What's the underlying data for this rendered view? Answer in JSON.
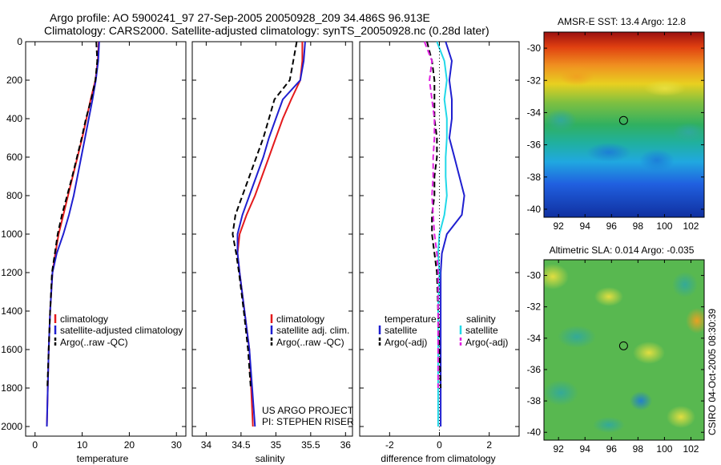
{
  "header": {
    "line1": "Argo profile: AO 5900241_97 27-Sep-2005 20050928_209 34.486S 96.913E",
    "line2": "Climatology: CARS2000. Satellite-adjusted climatology: synTS_20050928.nc (0.28d later)"
  },
  "colors": {
    "climatology": "#e41a1c",
    "satellite": "#1f1fd0",
    "argo": "#000000",
    "sal_satellite": "#22d8e8",
    "sal_argo": "#e020e0"
  },
  "credits": {
    "line1": "US ARGO PROJECT",
    "line2": "PI: STEPHEN RISER"
  },
  "watermark": "CSIRO 04-Oct-2005 08:30:39",
  "chart_data": [
    {
      "type": "line",
      "id": "temperature",
      "xlabel": "temperature",
      "xlim": [
        -2,
        32
      ],
      "xticks": [
        0,
        10,
        20,
        30
      ],
      "ylim": [
        2050,
        0
      ],
      "yticks": [
        0,
        200,
        400,
        600,
        800,
        1000,
        1200,
        1400,
        1600,
        1800,
        2000
      ],
      "legend": [
        "climatology",
        "satellite-adjusted climatology",
        "Argo(..raw -QC)"
      ],
      "series": [
        {
          "name": "climatology",
          "style": "solid",
          "color": "climatology",
          "x": [
            13.5,
            13.3,
            12.8,
            11.8,
            10.9,
            10.0,
            9.0,
            8.0,
            7.0,
            6.0,
            5.0,
            4.3,
            3.7,
            3.2,
            2.9,
            2.5
          ],
          "y": [
            0,
            100,
            200,
            300,
            400,
            500,
            600,
            700,
            800,
            900,
            1000,
            1100,
            1200,
            1400,
            1600,
            2000
          ]
        },
        {
          "name": "satellite-adjusted climatology",
          "style": "solid",
          "color": "satellite",
          "x": [
            13.6,
            13.4,
            12.9,
            12.2,
            11.4,
            10.6,
            9.8,
            9.0,
            8.2,
            7.2,
            6.0,
            4.6,
            3.7,
            3.2,
            2.9,
            2.5
          ],
          "y": [
            0,
            100,
            200,
            300,
            400,
            500,
            600,
            700,
            800,
            900,
            1000,
            1100,
            1200,
            1400,
            1600,
            2000
          ]
        },
        {
          "name": "Argo(..raw -QC)",
          "style": "dash",
          "color": "argo",
          "x": [
            13.0,
            13.2,
            12.8,
            11.9,
            10.8,
            9.9,
            8.9,
            7.9,
            6.8,
            5.7,
            4.8,
            4.2,
            3.6,
            3.2,
            2.9,
            2.6
          ],
          "y": [
            0,
            100,
            200,
            300,
            400,
            500,
            600,
            700,
            800,
            900,
            1000,
            1100,
            1200,
            1400,
            1600,
            1800
          ]
        }
      ]
    },
    {
      "type": "line",
      "id": "salinity",
      "xlabel": "salinity",
      "xlim": [
        33.8,
        36.1
      ],
      "xticks": [
        34,
        34.5,
        35,
        35.5,
        36
      ],
      "ylim": [
        2050,
        0
      ],
      "legend": [
        "climatology",
        "satellite adj. clim.",
        "Argo(..raw -QC)"
      ],
      "series": [
        {
          "name": "climatology",
          "style": "solid",
          "color": "climatology",
          "x": [
            35.38,
            35.38,
            35.35,
            35.22,
            35.1,
            35.0,
            34.9,
            34.8,
            34.7,
            34.58,
            34.48,
            34.45,
            34.48,
            34.55,
            34.62,
            34.67
          ],
          "y": [
            0,
            100,
            200,
            300,
            400,
            500,
            600,
            700,
            800,
            900,
            1000,
            1100,
            1200,
            1400,
            1600,
            2000
          ]
        },
        {
          "name": "satellite adj. clim.",
          "style": "solid",
          "color": "satellite",
          "x": [
            35.42,
            35.4,
            35.35,
            35.1,
            35.0,
            34.9,
            34.82,
            34.72,
            34.62,
            34.52,
            34.45,
            34.45,
            34.48,
            34.55,
            34.62,
            34.7
          ],
          "y": [
            0,
            100,
            200,
            300,
            400,
            500,
            600,
            700,
            800,
            900,
            1000,
            1100,
            1200,
            1400,
            1600,
            2000
          ]
        },
        {
          "name": "Argo(..raw -QC)",
          "style": "dash",
          "color": "argo",
          "x": [
            35.3,
            35.25,
            35.2,
            34.98,
            34.9,
            34.82,
            34.72,
            34.62,
            34.52,
            34.42,
            34.38,
            34.43,
            34.47,
            34.54,
            34.6,
            34.64
          ],
          "y": [
            0,
            100,
            200,
            300,
            400,
            500,
            600,
            700,
            800,
            900,
            1000,
            1100,
            1200,
            1400,
            1600,
            1800
          ]
        }
      ]
    },
    {
      "type": "line",
      "id": "difference",
      "xlabel": "difference from climatology",
      "xlim": [
        -3.2,
        3.2
      ],
      "xticks": [
        -2,
        0,
        2
      ],
      "ylim": [
        2050,
        0
      ],
      "legend_left": {
        "title": "temperature",
        "items": [
          "satellite",
          "Argo(-adj)"
        ]
      },
      "legend_right": {
        "title": "salinity",
        "items": [
          "satellite",
          "Argo(-adj)"
        ]
      },
      "series": [
        {
          "name": "temperature satellite",
          "style": "solid",
          "color": "satellite",
          "x": [
            0.25,
            0.5,
            0.4,
            0.5,
            0.5,
            0.4,
            0.6,
            0.8,
            1.0,
            0.9,
            0.3,
            0.1,
            0.05,
            0.05,
            0.05,
            0.05
          ],
          "y": [
            0,
            100,
            200,
            300,
            400,
            500,
            600,
            700,
            800,
            900,
            1000,
            1100,
            1200,
            1400,
            1600,
            2000
          ]
        },
        {
          "name": "salinity satellite",
          "style": "solid",
          "color": "sal_satellite",
          "x": [
            -0.1,
            0.2,
            0.3,
            0.2,
            0.3,
            0.3,
            0.25,
            0.25,
            0.3,
            0.2,
            0.0,
            -0.05,
            0.0,
            -0.05,
            -0.05,
            -0.05
          ],
          "y": [
            0,
            100,
            200,
            300,
            400,
            500,
            600,
            700,
            800,
            900,
            1000,
            1100,
            1200,
            1400,
            1600,
            2000
          ]
        },
        {
          "name": "temperature Argo(-adj)",
          "style": "dash",
          "color": "argo",
          "x": [
            -0.5,
            -0.3,
            -0.2,
            -0.2,
            -0.2,
            -0.1,
            -0.1,
            -0.2,
            -0.2,
            -0.3,
            -0.3,
            -0.2,
            -0.1,
            -0.05,
            0.0,
            0.05
          ],
          "y": [
            0,
            100,
            200,
            300,
            400,
            500,
            600,
            700,
            800,
            900,
            1000,
            1100,
            1200,
            1400,
            1600,
            1800
          ]
        },
        {
          "name": "salinity Argo(-adj)",
          "style": "dash",
          "color": "sal_argo",
          "x": [
            -0.6,
            -0.3,
            -0.4,
            -0.3,
            -0.2,
            -0.2,
            -0.25,
            -0.25,
            -0.3,
            -0.25,
            -0.2,
            -0.1,
            -0.05,
            -0.05,
            -0.05,
            -0.05
          ],
          "y": [
            0,
            100,
            200,
            300,
            400,
            500,
            600,
            700,
            800,
            900,
            1000,
            1100,
            1200,
            1400,
            1600,
            1800
          ]
        }
      ]
    },
    {
      "type": "heatmap",
      "id": "sst",
      "title": "AMSR-E SST: 13.4 Argo: 12.8",
      "xlim": [
        90.9,
        103
      ],
      "xticks": [
        92,
        94,
        96,
        98,
        100,
        102
      ],
      "ylim": [
        -40.5,
        -29
      ],
      "yticks": [
        -30,
        -32,
        -34,
        -36,
        -38,
        -40
      ],
      "marker": {
        "lon": 96.913,
        "lat": -34.486
      }
    },
    {
      "type": "heatmap",
      "id": "sla",
      "title": "Altimetric SLA: 0.014 Argo: -0.035",
      "xlim": [
        90.9,
        103
      ],
      "xticks": [
        92,
        94,
        96,
        98,
        100,
        102
      ],
      "ylim": [
        -40.5,
        -29
      ],
      "yticks": [
        -30,
        -32,
        -34,
        -36,
        -38,
        -40
      ],
      "marker": {
        "lon": 96.913,
        "lat": -34.486
      }
    }
  ]
}
